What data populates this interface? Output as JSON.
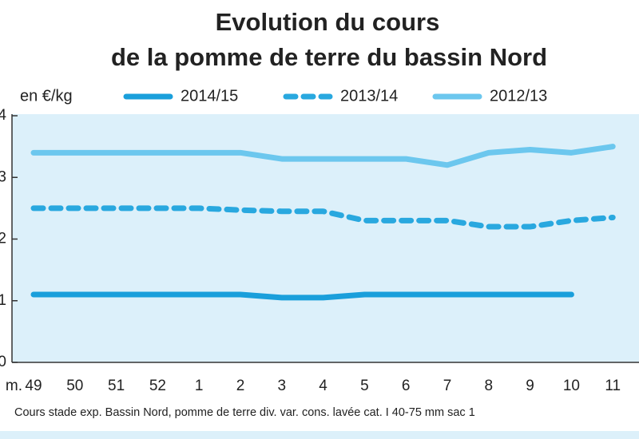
{
  "chart_data": {
    "type": "line",
    "title": [
      "Evolution du cours",
      "de la pomme de terre du bassin Nord"
    ],
    "ylabel": "en €/kg",
    "xlabel": "m.",
    "note": "Cours stade exp. Bassin Nord, pomme de terre div. var. cons. lavée cat. I 40-75 mm sac 1",
    "categories": [
      "49",
      "50",
      "51",
      "52",
      "1",
      "2",
      "3",
      "4",
      "5",
      "6",
      "7",
      "8",
      "9",
      "10",
      "11"
    ],
    "series": [
      {
        "name": "2014/15",
        "color": "#1a9fdb",
        "dashed": false,
        "values": [
          1.1,
          1.1,
          1.1,
          1.1,
          1.1,
          1.1,
          1.05,
          1.05,
          1.1,
          1.1,
          1.1,
          1.1,
          1.1,
          1.1,
          null
        ]
      },
      {
        "name": "2013/14",
        "color": "#29a8df",
        "dashed": true,
        "values": [
          2.5,
          2.5,
          2.5,
          2.5,
          2.5,
          2.47,
          2.45,
          2.45,
          2.3,
          2.3,
          2.3,
          2.2,
          2.2,
          2.3,
          2.35
        ]
      },
      {
        "name": "2012/13",
        "color": "#6cc7ee",
        "dashed": false,
        "values": [
          3.4,
          3.4,
          3.4,
          3.4,
          3.4,
          3.4,
          3.3,
          3.3,
          3.3,
          3.3,
          3.2,
          3.4,
          3.45,
          3.4,
          3.5
        ]
      }
    ],
    "ylim": [
      0,
      4
    ],
    "yticks": [
      0,
      1,
      2,
      3,
      4
    ]
  }
}
